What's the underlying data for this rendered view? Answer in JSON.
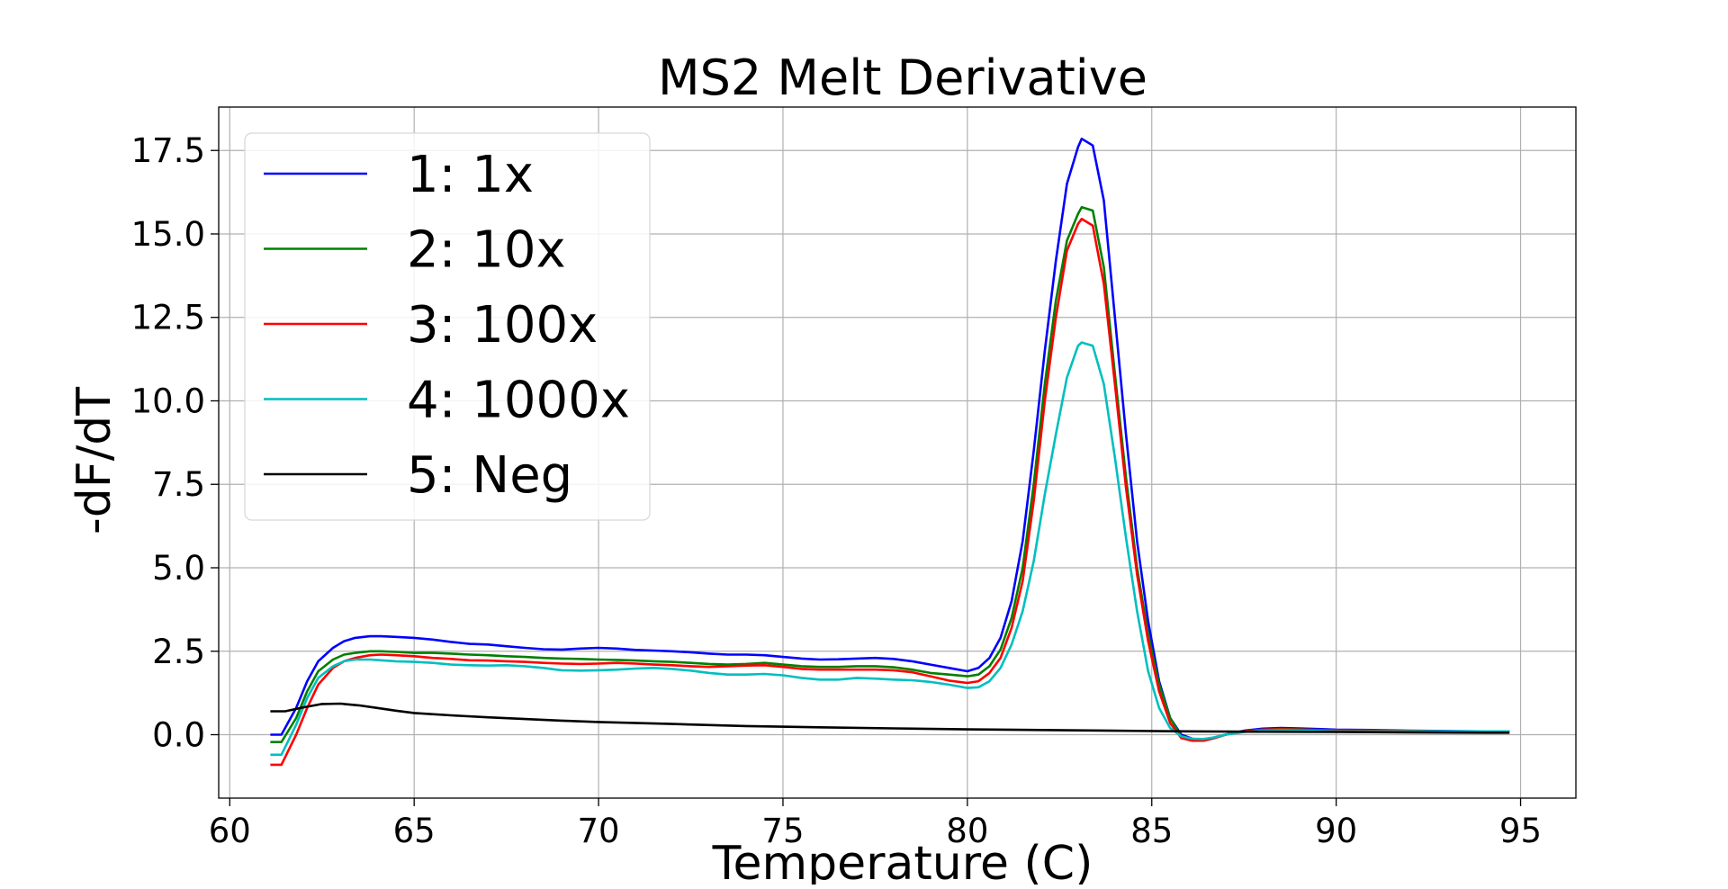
{
  "chart_data": {
    "type": "line",
    "title": "MS2 Melt Derivative",
    "xlabel": "Temperature (C)",
    "ylabel": "-dF/dT",
    "xlim": [
      59.7,
      96.5
    ],
    "ylim": [
      -1.9,
      18.8
    ],
    "xticks": [
      60,
      65,
      70,
      75,
      80,
      85,
      90,
      95
    ],
    "yticks": [
      0.0,
      2.5,
      5.0,
      7.5,
      10.0,
      12.5,
      15.0,
      17.5
    ],
    "xtick_labels": [
      "60",
      "65",
      "70",
      "75",
      "80",
      "85",
      "90",
      "95"
    ],
    "ytick_labels": [
      "0.0",
      "2.5",
      "5.0",
      "7.5",
      "10.0",
      "12.5",
      "15.0",
      "17.5"
    ],
    "grid": true,
    "legend_position": "top-left",
    "series": [
      {
        "name": "1: 1x",
        "color": "#0000ff",
        "x": [
          61.1,
          61.4,
          61.8,
          62.1,
          62.4,
          62.8,
          63.1,
          63.4,
          63.8,
          64.1,
          64.5,
          65.0,
          65.5,
          66.0,
          66.5,
          67.0,
          67.5,
          68.0,
          68.5,
          69.0,
          69.5,
          70.0,
          70.5,
          71.0,
          71.5,
          72.0,
          72.5,
          73.0,
          73.5,
          74.0,
          74.5,
          75.0,
          75.5,
          76.0,
          76.5,
          77.0,
          77.5,
          78.0,
          78.5,
          79.0,
          79.5,
          80.0,
          80.3,
          80.6,
          80.9,
          81.2,
          81.5,
          81.8,
          82.1,
          82.4,
          82.7,
          83.0,
          83.1,
          83.4,
          83.7,
          84.0,
          84.3,
          84.6,
          84.9,
          85.2,
          85.5,
          85.8,
          86.1,
          86.4,
          86.7,
          87.0,
          87.5,
          88.0,
          88.5,
          89.0,
          89.5,
          90.0,
          91.0,
          92.0,
          93.0,
          94.0,
          94.7
        ],
        "y": [
          0.0,
          0.0,
          0.8,
          1.6,
          2.2,
          2.6,
          2.8,
          2.9,
          2.95,
          2.95,
          2.93,
          2.9,
          2.85,
          2.78,
          2.72,
          2.7,
          2.65,
          2.6,
          2.56,
          2.55,
          2.58,
          2.6,
          2.58,
          2.54,
          2.52,
          2.5,
          2.47,
          2.43,
          2.4,
          2.4,
          2.38,
          2.33,
          2.28,
          2.25,
          2.26,
          2.28,
          2.3,
          2.27,
          2.2,
          2.1,
          2.0,
          1.9,
          2.0,
          2.3,
          2.9,
          4.0,
          5.8,
          8.5,
          11.5,
          14.2,
          16.5,
          17.6,
          17.85,
          17.65,
          16.0,
          12.5,
          9.0,
          5.8,
          3.4,
          1.6,
          0.5,
          0.0,
          -0.12,
          -0.15,
          -0.08,
          0.0,
          0.12,
          0.18,
          0.2,
          0.19,
          0.17,
          0.15,
          0.14,
          0.12,
          0.11,
          0.1,
          0.1
        ]
      },
      {
        "name": "2: 10x",
        "color": "#008000",
        "x": [
          61.1,
          61.4,
          61.8,
          62.1,
          62.4,
          62.8,
          63.1,
          63.4,
          63.8,
          64.1,
          64.5,
          65.0,
          65.5,
          66.0,
          66.5,
          67.0,
          67.5,
          68.0,
          68.5,
          69.0,
          69.5,
          70.0,
          70.5,
          71.0,
          71.5,
          72.0,
          72.5,
          73.0,
          73.5,
          74.0,
          74.5,
          75.0,
          75.5,
          76.0,
          76.5,
          77.0,
          77.5,
          78.0,
          78.5,
          79.0,
          79.5,
          80.0,
          80.3,
          80.6,
          80.9,
          81.2,
          81.5,
          81.8,
          82.1,
          82.4,
          82.7,
          83.0,
          83.1,
          83.4,
          83.7,
          84.0,
          84.3,
          84.6,
          84.9,
          85.2,
          85.5,
          85.8,
          86.1,
          86.4,
          86.7,
          87.0,
          87.5,
          88.0,
          88.5,
          89.0,
          89.5,
          90.0,
          91.0,
          92.0,
          93.0,
          94.0,
          94.7
        ],
        "y": [
          -0.22,
          -0.22,
          0.5,
          1.3,
          1.9,
          2.25,
          2.4,
          2.45,
          2.5,
          2.5,
          2.48,
          2.45,
          2.45,
          2.43,
          2.4,
          2.38,
          2.35,
          2.33,
          2.3,
          2.28,
          2.27,
          2.25,
          2.24,
          2.22,
          2.2,
          2.18,
          2.15,
          2.12,
          2.1,
          2.12,
          2.15,
          2.1,
          2.05,
          2.03,
          2.03,
          2.05,
          2.05,
          2.02,
          1.95,
          1.85,
          1.8,
          1.75,
          1.8,
          2.05,
          2.55,
          3.5,
          5.0,
          7.5,
          10.5,
          13.0,
          14.8,
          15.6,
          15.8,
          15.7,
          14.0,
          10.8,
          7.7,
          5.0,
          3.0,
          1.5,
          0.5,
          -0.05,
          -0.15,
          -0.18,
          -0.1,
          0.0,
          0.1,
          0.15,
          0.17,
          0.16,
          0.14,
          0.13,
          0.12,
          0.11,
          0.1,
          0.1,
          0.1
        ]
      },
      {
        "name": "3: 100x",
        "color": "#ff0000",
        "x": [
          61.1,
          61.4,
          61.8,
          62.1,
          62.4,
          62.8,
          63.1,
          63.4,
          63.8,
          64.1,
          64.5,
          65.0,
          65.5,
          66.0,
          66.5,
          67.0,
          67.5,
          68.0,
          68.5,
          69.0,
          69.5,
          70.0,
          70.5,
          71.0,
          71.5,
          72.0,
          72.5,
          73.0,
          73.5,
          74.0,
          74.5,
          75.0,
          75.5,
          76.0,
          76.5,
          77.0,
          77.5,
          78.0,
          78.5,
          79.0,
          79.5,
          80.0,
          80.3,
          80.6,
          80.9,
          81.2,
          81.5,
          81.8,
          82.1,
          82.4,
          82.7,
          83.0,
          83.1,
          83.4,
          83.7,
          84.0,
          84.3,
          84.6,
          84.9,
          85.2,
          85.5,
          85.8,
          86.1,
          86.4,
          86.7,
          87.0,
          87.5,
          88.0,
          88.5,
          89.0,
          89.5,
          90.0,
          91.0,
          92.0,
          93.0,
          94.0,
          94.7
        ],
        "y": [
          -0.9,
          -0.9,
          0.0,
          0.8,
          1.5,
          2.0,
          2.2,
          2.3,
          2.38,
          2.4,
          2.38,
          2.35,
          2.3,
          2.27,
          2.23,
          2.22,
          2.2,
          2.18,
          2.15,
          2.13,
          2.12,
          2.13,
          2.15,
          2.13,
          2.1,
          2.08,
          2.05,
          2.03,
          2.05,
          2.07,
          2.08,
          2.03,
          1.97,
          1.95,
          1.95,
          1.95,
          1.95,
          1.93,
          1.87,
          1.75,
          1.62,
          1.55,
          1.6,
          1.85,
          2.3,
          3.2,
          4.6,
          7.0,
          10.0,
          12.5,
          14.5,
          15.3,
          15.45,
          15.25,
          13.5,
          10.5,
          7.4,
          4.8,
          2.8,
          1.3,
          0.35,
          -0.1,
          -0.18,
          -0.18,
          -0.1,
          0.0,
          0.1,
          0.15,
          0.16,
          0.15,
          0.14,
          0.13,
          0.12,
          0.11,
          0.1,
          0.1,
          0.1
        ]
      },
      {
        "name": "4: 1000x",
        "color": "#00bfbf",
        "x": [
          61.1,
          61.4,
          61.8,
          62.1,
          62.4,
          62.8,
          63.1,
          63.4,
          63.8,
          64.1,
          64.5,
          65.0,
          65.5,
          66.0,
          66.5,
          67.0,
          67.5,
          68.0,
          68.5,
          69.0,
          69.5,
          70.0,
          70.5,
          71.0,
          71.5,
          72.0,
          72.5,
          73.0,
          73.5,
          74.0,
          74.5,
          75.0,
          75.5,
          76.0,
          76.5,
          77.0,
          77.5,
          78.0,
          78.5,
          79.0,
          79.5,
          80.0,
          80.3,
          80.6,
          80.9,
          81.2,
          81.5,
          81.8,
          82.1,
          82.4,
          82.7,
          83.0,
          83.1,
          83.4,
          83.7,
          84.0,
          84.3,
          84.6,
          84.9,
          85.2,
          85.5,
          85.8,
          86.1,
          86.4,
          86.7,
          87.0,
          87.5,
          88.0,
          88.5,
          89.0,
          89.5,
          90.0,
          91.0,
          92.0,
          93.0,
          94.0,
          94.7
        ],
        "y": [
          -0.6,
          -0.6,
          0.3,
          1.1,
          1.7,
          2.05,
          2.2,
          2.25,
          2.25,
          2.23,
          2.2,
          2.18,
          2.15,
          2.1,
          2.08,
          2.07,
          2.08,
          2.05,
          2.0,
          1.93,
          1.92,
          1.93,
          1.95,
          1.98,
          2.0,
          1.97,
          1.92,
          1.85,
          1.8,
          1.8,
          1.82,
          1.78,
          1.7,
          1.65,
          1.65,
          1.7,
          1.68,
          1.65,
          1.63,
          1.58,
          1.5,
          1.4,
          1.42,
          1.6,
          2.0,
          2.7,
          3.7,
          5.2,
          7.2,
          9.0,
          10.7,
          11.65,
          11.75,
          11.65,
          10.5,
          8.3,
          5.9,
          3.7,
          1.9,
          0.8,
          0.2,
          -0.05,
          -0.12,
          -0.13,
          -0.08,
          0.0,
          0.08,
          0.12,
          0.13,
          0.12,
          0.11,
          0.1,
          0.1,
          0.1,
          0.1,
          0.1,
          0.1
        ]
      },
      {
        "name": "5: Neg",
        "color": "#000000",
        "x": [
          61.1,
          61.5,
          62.0,
          62.5,
          63.0,
          63.5,
          64.0,
          64.5,
          65.0,
          66.0,
          67.0,
          68.0,
          69.0,
          70.0,
          72.0,
          74.0,
          76.0,
          78.0,
          80.0,
          82.0,
          84.0,
          86.0,
          88.0,
          90.0,
          92.0,
          94.0,
          94.7
        ],
        "y": [
          0.7,
          0.7,
          0.82,
          0.92,
          0.93,
          0.88,
          0.8,
          0.72,
          0.65,
          0.58,
          0.52,
          0.47,
          0.42,
          0.38,
          0.32,
          0.26,
          0.22,
          0.19,
          0.16,
          0.14,
          0.12,
          0.1,
          0.09,
          0.08,
          0.07,
          0.06,
          0.06
        ]
      }
    ]
  }
}
